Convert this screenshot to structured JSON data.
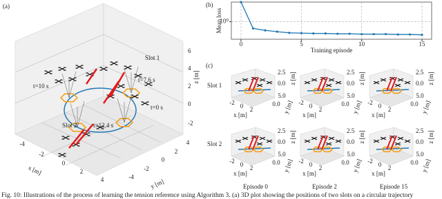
{
  "panel_a": {
    "tag": "(a)",
    "slot_labels": [
      "Slot 1",
      "Slot 2"
    ],
    "time_labels": [
      "t=7.6 s",
      "t=10 s",
      "t=0 s",
      "t=12.4 s"
    ],
    "z_ticks": [
      6,
      4,
      2,
      0,
      -2
    ],
    "x_ticks": [
      -4,
      -2,
      0,
      2,
      4
    ],
    "y_ticks": [
      -4,
      -2,
      0,
      2,
      4
    ],
    "x_label": "x [m]",
    "y_label": "y [m]",
    "z_label": "z [m]"
  },
  "panel_b": {
    "tag": "(b)",
    "chart_data": {
      "type": "line",
      "y_label": "Mean loss",
      "x_label": "Training episode",
      "x": [
        0,
        1,
        2,
        3,
        4,
        5,
        6,
        7,
        8,
        9,
        10,
        11,
        12,
        13,
        14,
        15
      ],
      "values": [
        6,
        0.54,
        0.45,
        0.4,
        0.36,
        0.35,
        0.34,
        0.34,
        0.33,
        0.33,
        0.32,
        0.32,
        0.32,
        0.31,
        0.31,
        0.3
      ],
      "color": "#1f77b4",
      "xlim": [
        -0.8,
        15.8
      ],
      "ylim": [
        0.2,
        6
      ],
      "xticks": [
        0,
        5,
        10,
        15
      ],
      "yticks": [
        {
          "value": 1,
          "label": "10⁰"
        }
      ],
      "log_y": true,
      "grid": true
    }
  },
  "panel_c": {
    "tag": "(c)",
    "rows": [
      "Slot 1",
      "Slot 2"
    ],
    "columns": [
      "Episode 0",
      "Episode 2",
      "Episode 15"
    ],
    "z_ticks": [
      2.5,
      {
        "value": 0,
        "label": "0.0"
      }
    ],
    "x_ticks": [
      -2,
      0,
      2
    ],
    "y_ticks": [
      {
        "value": 5,
        "label": "5.0"
      },
      {
        "value": 0,
        "label": "0.0"
      }
    ],
    "x_label": "x [m]",
    "y_label": "y [m]",
    "z_label": "z [m]"
  },
  "caption": "Fig. 10: Illustrations of the process of learning the tension reference using Algorithm 3. (a) 3D plot showing the positions of two slots on a circular trajectory"
}
